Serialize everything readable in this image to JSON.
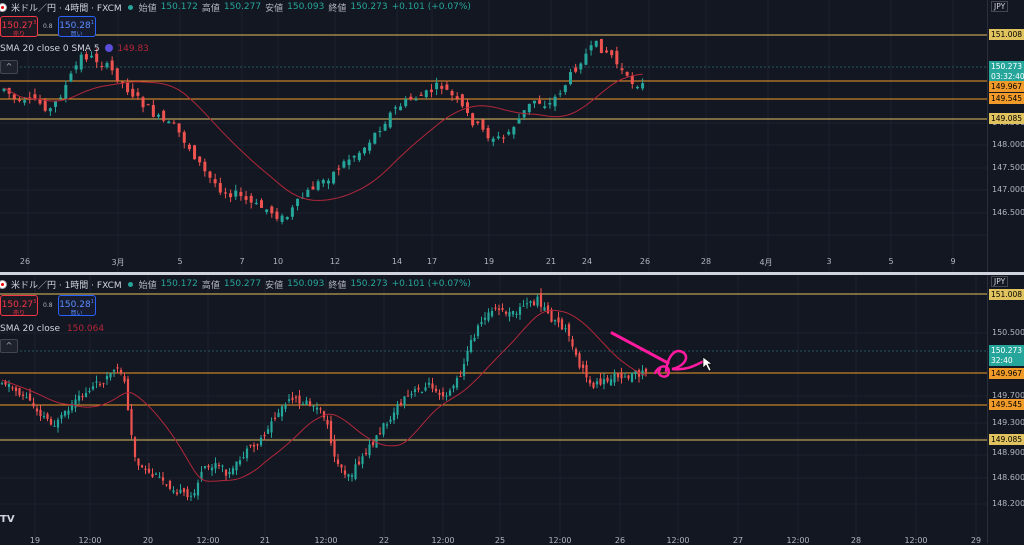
{
  "top": {
    "symbol": "米ドル／円 · 4時間 · FXCM",
    "ohlc": [
      {
        "label": "始値",
        "value": "150.172"
      },
      {
        "label": "高値",
        "value": "150.277"
      },
      {
        "label": "安値",
        "value": "150.093"
      },
      {
        "label": "終値",
        "value": "150.273"
      }
    ],
    "change": "+0.101 (+0.07%)",
    "sell": {
      "price": "150.27",
      "sup": "3",
      "label": "売り"
    },
    "spread": "0.8",
    "buy": {
      "price": "150.28",
      "sup": "1",
      "label": "買い"
    },
    "sma_text": "SMA 20 close 0 SMA 5",
    "sma_value": "149.83",
    "axis_unit": "JPY",
    "ticks": [
      "148.500",
      "148.000",
      "147.500",
      "147.000",
      "146.500"
    ],
    "price_labels": [
      {
        "text": "151.008",
        "kind": "yellow"
      },
      {
        "text": "150.273",
        "kind": "teal"
      },
      {
        "text": "03:32:40",
        "kind": "teal-sub"
      },
      {
        "text": "149.967",
        "kind": "orange"
      },
      {
        "text": "149.545",
        "kind": "orange"
      },
      {
        "text": "149.085",
        "kind": "yellow"
      }
    ],
    "x_labels": [
      "26",
      "3月",
      "5",
      "7",
      "10",
      "12",
      "14",
      "17",
      "19",
      "21",
      "24",
      "26",
      "28",
      "4月",
      "3",
      "5",
      "9"
    ]
  },
  "bottom": {
    "symbol": "米ドル／円 · 1時間 · FXCM",
    "ohlc": [
      {
        "label": "始値",
        "value": "150.172"
      },
      {
        "label": "高値",
        "value": "150.277"
      },
      {
        "label": "安値",
        "value": "150.093"
      },
      {
        "label": "終値",
        "value": "150.273"
      }
    ],
    "change": "+0.101 (+0.07%)",
    "sell": {
      "price": "150.27",
      "sup": "3",
      "label": "売り"
    },
    "spread": "0.8",
    "buy": {
      "price": "150.28",
      "sup": "1",
      "label": "買い"
    },
    "sma_text": "SMA 20 close",
    "sma_value": "150.064",
    "axis_unit": "JPY",
    "ticks": [
      "150.500",
      "149.700",
      "149.300",
      "148.900",
      "148.600",
      "148.200"
    ],
    "price_labels": [
      {
        "text": "151.008",
        "kind": "yellow"
      },
      {
        "text": "150.273",
        "kind": "teal"
      },
      {
        "text": "32:40",
        "kind": "teal-sub"
      },
      {
        "text": "149.967",
        "kind": "orange"
      },
      {
        "text": "149.545",
        "kind": "orange"
      },
      {
        "text": "149.085",
        "kind": "yellow"
      }
    ],
    "x_labels": [
      "19",
      "12:00",
      "20",
      "12:00",
      "21",
      "12:00",
      "22",
      "12:00",
      "25",
      "12:00",
      "26",
      "12:00",
      "27",
      "12:00",
      "28",
      "12:00",
      "29"
    ],
    "tv_logo": "TV"
  },
  "colors": {
    "up": "#26a69a",
    "down": "#ef5350",
    "sma": "#b2273a",
    "level_yellow": "#e0c25e",
    "level_orange": "#f09a2a",
    "annotation": "#ff1aa0"
  }
}
